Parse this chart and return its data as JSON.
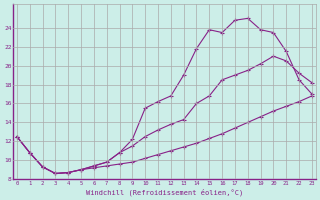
{
  "xlabel": "Windchill (Refroidissement éolien,°C)",
  "background_color": "#cceee8",
  "grid_color": "#aaaaaa",
  "line_color": "#882288",
  "xmin": 0,
  "xmax": 23,
  "ymin": 8,
  "ymax": 26,
  "yticks": [
    8,
    10,
    12,
    14,
    16,
    18,
    20,
    22,
    24
  ],
  "xticks": [
    0,
    1,
    2,
    3,
    4,
    5,
    6,
    7,
    8,
    9,
    10,
    11,
    12,
    13,
    14,
    15,
    16,
    17,
    18,
    19,
    20,
    21,
    22,
    23
  ],
  "line1_x": [
    0,
    1,
    2,
    3,
    4,
    5,
    6,
    7,
    8,
    9,
    10,
    11,
    12,
    13,
    14,
    15,
    16,
    17,
    18,
    19,
    20,
    21,
    22,
    23
  ],
  "line1_y": [
    12.5,
    10.8,
    9.3,
    8.6,
    8.7,
    9.0,
    9.2,
    9.4,
    9.6,
    9.8,
    10.2,
    10.6,
    11.0,
    11.4,
    11.8,
    12.3,
    12.8,
    13.4,
    14.0,
    14.6,
    15.2,
    15.7,
    16.2,
    16.8
  ],
  "line2_x": [
    0,
    1,
    2,
    3,
    4,
    5,
    6,
    7,
    8,
    9,
    10,
    11,
    12,
    13,
    14,
    15,
    16,
    17,
    18,
    19,
    20,
    21,
    22,
    23
  ],
  "line2_y": [
    12.5,
    10.8,
    9.3,
    8.6,
    8.7,
    9.0,
    9.4,
    9.8,
    10.8,
    11.5,
    12.5,
    13.2,
    13.8,
    14.3,
    16.0,
    16.8,
    18.5,
    19.0,
    19.5,
    20.2,
    21.0,
    20.5,
    19.2,
    18.2
  ],
  "line3_x": [
    0,
    1,
    2,
    3,
    4,
    5,
    6,
    7,
    8,
    9,
    10,
    11,
    12,
    13,
    14,
    15,
    16,
    17,
    18,
    19,
    20,
    21,
    22,
    23
  ],
  "line3_y": [
    12.5,
    10.8,
    9.3,
    8.6,
    8.7,
    9.0,
    9.4,
    9.8,
    10.8,
    12.2,
    15.5,
    16.2,
    16.8,
    19.0,
    21.8,
    23.8,
    23.5,
    24.8,
    25.0,
    23.8,
    23.5,
    21.5,
    18.5,
    17.0
  ]
}
